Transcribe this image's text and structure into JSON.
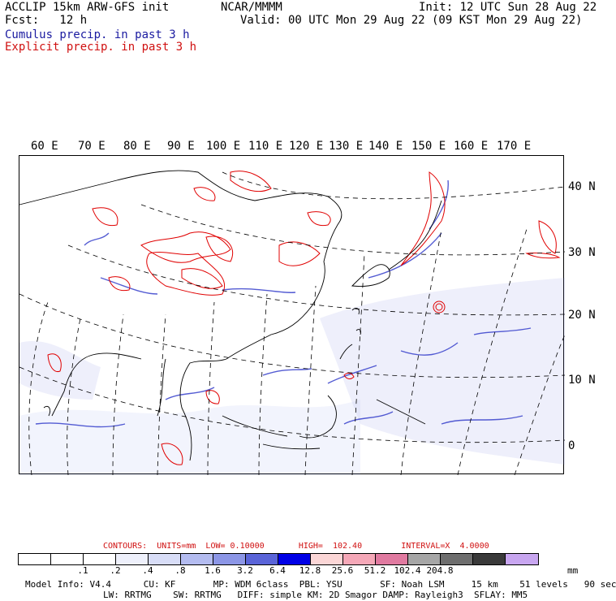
{
  "header": {
    "model": "ACCLIP 15km ARW-GFS init",
    "forecast": "Fcst:   12 h",
    "org": "NCAR/MMMM",
    "init": "Init: 12 UTC Sun 28 Aug 22",
    "valid": "Valid: 00 UTC Mon 29 Aug 22 (09 KST Mon 29 Aug 22)",
    "cumulus_label": "Cumulus precip. in past 3 h",
    "explicit_label": "Explicit precip. in past 3 h",
    "cumulus_color": "#1a1aa0",
    "explicit_color": "#d01010"
  },
  "map": {
    "longitude_labels": [
      "60 E",
      "70 E",
      "80 E",
      "90 E",
      "100 E",
      "110 E",
      "120 E",
      "130 E",
      "140 E",
      "150 E",
      "160 E",
      "170 E"
    ],
    "latitude_labels": [
      "40 N",
      "30 N",
      "20 N",
      "10 N",
      "0"
    ]
  },
  "legend": {
    "contours_text": "CONTOURS:  UNITS=mm  LOW= 0.10000       HIGH=  102.40        INTERVAL=X  4.0000",
    "colors": [
      "#ffffff",
      "#ffffff",
      "#ffffff",
      "#eef0fb",
      "#d8ddf7",
      "#b4bcf0",
      "#8c96e6",
      "#5a64d8",
      "#0000e6",
      "#fbd6d6",
      "#f5a8b8",
      "#e07aa0",
      "#a6a6a6",
      "#6e6e6e",
      "#3a3a3a",
      "#c8a6f0"
    ],
    "ticks": [
      ".1",
      ".2",
      ".4",
      ".8",
      "1.6",
      "3.2",
      "6.4",
      "12.8",
      "25.6",
      "51.2",
      "102.4",
      "204.8"
    ],
    "units": "mm"
  },
  "footer": {
    "line1": "Model Info: V4.4      CU: KF       MP: WDM 6class  PBL: YSU       SF: Noah LSM     15 km    51 levels   90 sec",
    "line2": "LW: RRTMG    SW: RRTMG   DIFF: simple KM: 2D Smagor DAMP: Rayleigh3  SFLAY: MM5"
  }
}
